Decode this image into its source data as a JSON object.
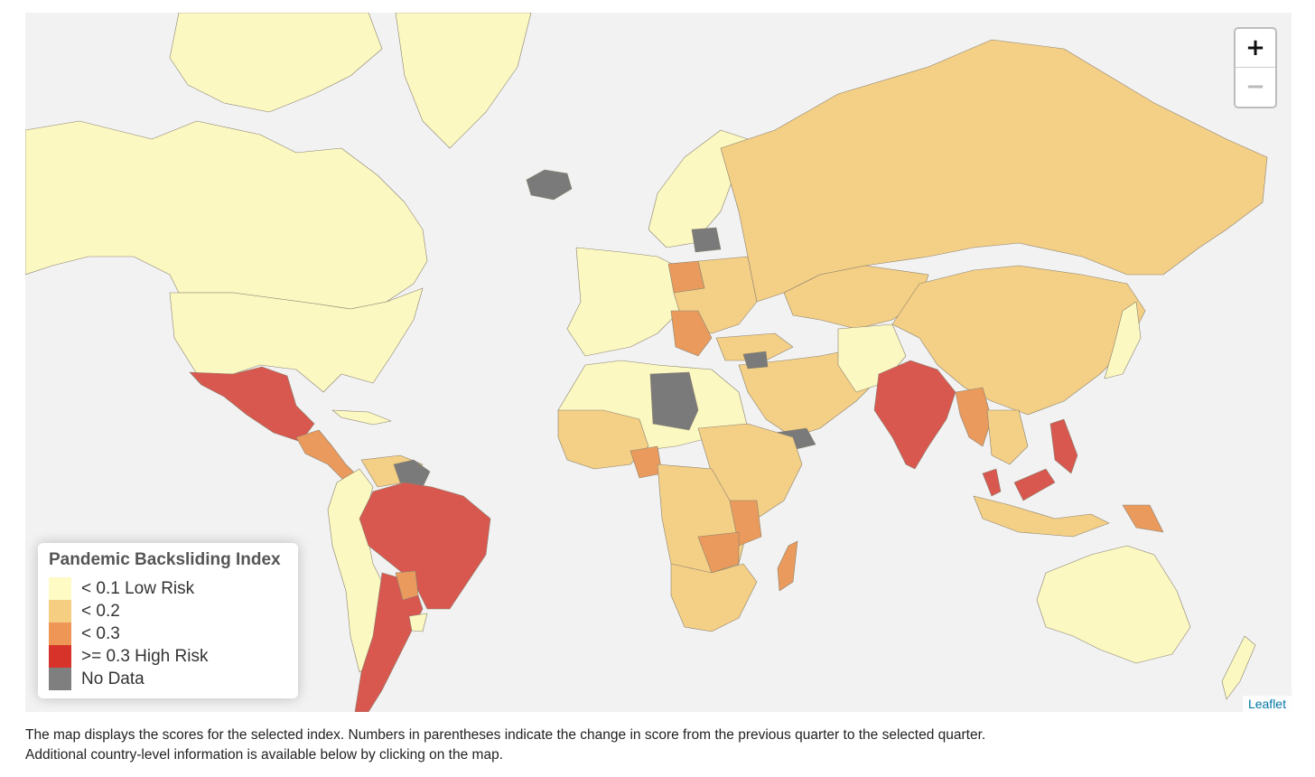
{
  "legend": {
    "title": "Pandemic Backsliding Index",
    "items": [
      {
        "label": "< 0.1 Low Risk",
        "color": "#fefbc4"
      },
      {
        "label": "< 0.2",
        "color": "#f6ce82"
      },
      {
        "label": "< 0.3",
        "color": "#ee9655"
      },
      {
        "label": ">= 0.3 High Risk",
        "color": "#d8332b"
      },
      {
        "label": "No Data",
        "color": "#7f7f7f"
      }
    ]
  },
  "region_colors": {
    "low": "#fcf8c2",
    "medium": "#f4cf86",
    "elevated": "#ea9a5c",
    "high": "#d85850",
    "none": "#7a7a7a",
    "water": "#f2f2f2"
  },
  "zoom": {
    "in": "+",
    "out": "−"
  },
  "attribution": "Leaflet",
  "caption": {
    "line1": "The map displays the scores for the selected index. Numbers in parentheses indicate the change in score from the previous quarter to the selected quarter.",
    "line2": "Additional country-level information is available below by clicking on the map."
  }
}
